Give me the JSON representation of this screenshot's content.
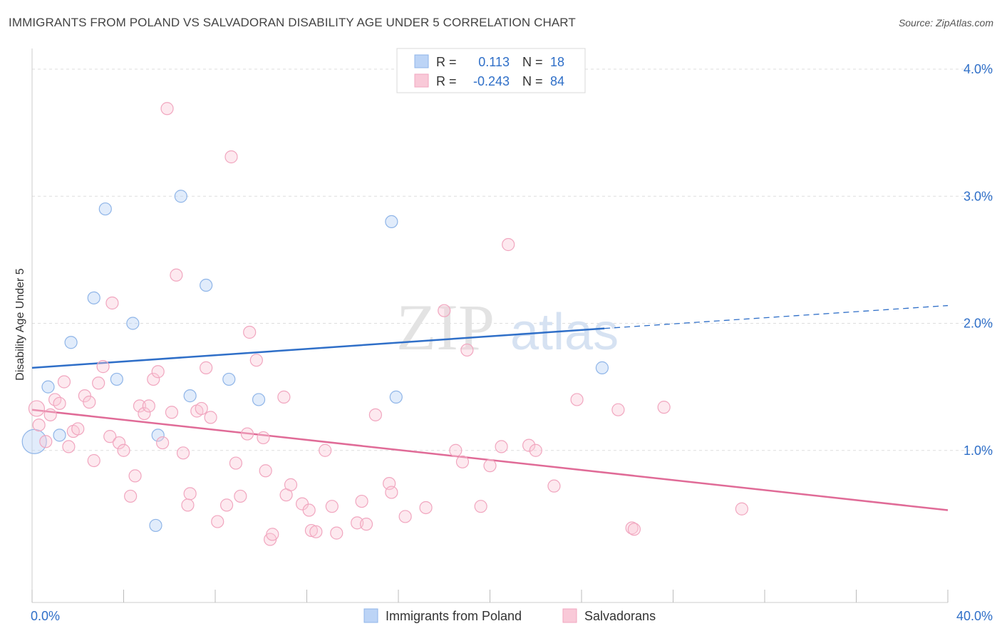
{
  "title": "IMMIGRANTS FROM POLAND VS SALVADORAN DISABILITY AGE UNDER 5 CORRELATION CHART",
  "source": "Source: ZipAtlas.com",
  "watermark": {
    "zip": "ZIP",
    "atlas": "atlas"
  },
  "legend_stats": [
    {
      "r_label": "R =",
      "r_value": "0.113",
      "n_label": "N =",
      "n_value": "18",
      "color": "#8fb5e8",
      "fill": "#bcd4f6"
    },
    {
      "r_label": "R =",
      "r_value": "-0.243",
      "n_label": "N =",
      "n_value": "84",
      "color": "#f1a6bf",
      "fill": "#f9c9d8"
    }
  ],
  "colors": {
    "blue_line": "#2f6fc8",
    "pink_line": "#e06b97",
    "blue_text": "#2f6fc8",
    "grid": "#dddddd"
  },
  "chart_data": {
    "type": "scatter",
    "xlabel": "",
    "ylabel": "Disability Age Under 5",
    "xlim": [
      0,
      40
    ],
    "ylim": [
      0,
      4.0
    ],
    "x_tick_labels": [
      "0.0%",
      "40.0%"
    ],
    "y_ticks": [
      1.0,
      2.0,
      3.0,
      4.0
    ],
    "y_tick_labels": [
      "1.0%",
      "2.0%",
      "3.0%",
      "4.0%"
    ],
    "grid": true,
    "legend_position": "bottom",
    "series": [
      {
        "name": "Immigrants from Poland",
        "color": "#8fb5e8",
        "points": [
          [
            0.1,
            1.07
          ],
          [
            0.7,
            1.5
          ],
          [
            1.2,
            1.12
          ],
          [
            1.7,
            1.85
          ],
          [
            2.7,
            2.2
          ],
          [
            3.2,
            2.9
          ],
          [
            3.7,
            1.56
          ],
          [
            4.4,
            2.0
          ],
          [
            5.5,
            1.12
          ],
          [
            5.4,
            0.41
          ],
          [
            6.5,
            3.0
          ],
          [
            6.9,
            1.43
          ],
          [
            7.6,
            2.3
          ],
          [
            8.6,
            1.56
          ],
          [
            9.9,
            1.4
          ],
          [
            15.7,
            2.8
          ],
          [
            15.9,
            1.42
          ],
          [
            24.9,
            1.65
          ]
        ],
        "trend": {
          "x": [
            0,
            25
          ],
          "y": [
            1.65,
            1.96
          ],
          "dashed_extension": {
            "x": [
              25,
              40
            ],
            "y": [
              1.96,
              2.14
            ]
          }
        }
      },
      {
        "name": "Salvadorans",
        "color": "#f1a6bf",
        "points": [
          [
            0.2,
            1.33
          ],
          [
            0.3,
            1.2
          ],
          [
            0.6,
            1.07
          ],
          [
            0.8,
            1.28
          ],
          [
            1.0,
            1.4
          ],
          [
            1.2,
            1.37
          ],
          [
            1.4,
            1.54
          ],
          [
            1.6,
            1.03
          ],
          [
            1.8,
            1.15
          ],
          [
            2.0,
            1.17
          ],
          [
            2.3,
            1.43
          ],
          [
            2.5,
            1.38
          ],
          [
            2.7,
            0.92
          ],
          [
            2.9,
            1.53
          ],
          [
            3.1,
            1.66
          ],
          [
            3.4,
            1.11
          ],
          [
            3.5,
            2.16
          ],
          [
            3.8,
            1.06
          ],
          [
            4.0,
            1.0
          ],
          [
            4.3,
            0.64
          ],
          [
            4.5,
            0.8
          ],
          [
            4.7,
            1.35
          ],
          [
            4.9,
            1.29
          ],
          [
            5.1,
            1.35
          ],
          [
            5.3,
            1.56
          ],
          [
            5.5,
            1.62
          ],
          [
            5.7,
            1.06
          ],
          [
            5.9,
            3.69
          ],
          [
            6.1,
            1.3
          ],
          [
            6.3,
            2.38
          ],
          [
            6.6,
            0.98
          ],
          [
            6.8,
            0.57
          ],
          [
            6.9,
            0.66
          ],
          [
            7.2,
            1.31
          ],
          [
            7.4,
            1.33
          ],
          [
            7.6,
            1.65
          ],
          [
            7.8,
            1.26
          ],
          [
            8.1,
            0.44
          ],
          [
            8.5,
            0.57
          ],
          [
            8.7,
            3.31
          ],
          [
            8.9,
            0.9
          ],
          [
            9.1,
            0.64
          ],
          [
            9.4,
            1.13
          ],
          [
            9.5,
            1.93
          ],
          [
            9.8,
            1.71
          ],
          [
            10.1,
            1.1
          ],
          [
            10.2,
            0.84
          ],
          [
            10.4,
            0.3
          ],
          [
            10.5,
            0.34
          ],
          [
            11.0,
            1.42
          ],
          [
            11.1,
            0.65
          ],
          [
            11.3,
            0.73
          ],
          [
            11.8,
            0.58
          ],
          [
            12.1,
            0.53
          ],
          [
            12.2,
            0.37
          ],
          [
            12.4,
            0.36
          ],
          [
            12.8,
            1.0
          ],
          [
            13.1,
            0.56
          ],
          [
            13.3,
            0.35
          ],
          [
            14.2,
            0.43
          ],
          [
            14.4,
            0.6
          ],
          [
            14.6,
            0.42
          ],
          [
            15.0,
            1.28
          ],
          [
            15.6,
            0.74
          ],
          [
            15.7,
            0.67
          ],
          [
            16.3,
            0.48
          ],
          [
            17.2,
            0.55
          ],
          [
            18.0,
            2.1
          ],
          [
            18.5,
            1.0
          ],
          [
            18.8,
            0.91
          ],
          [
            19.0,
            1.79
          ],
          [
            19.6,
            0.56
          ],
          [
            20.0,
            0.88
          ],
          [
            20.5,
            1.03
          ],
          [
            20.8,
            2.62
          ],
          [
            21.7,
            1.04
          ],
          [
            22.0,
            1.0
          ],
          [
            22.8,
            0.72
          ],
          [
            23.8,
            1.4
          ],
          [
            25.6,
            1.32
          ],
          [
            26.2,
            0.39
          ],
          [
            26.3,
            0.38
          ],
          [
            27.6,
            1.34
          ],
          [
            31.0,
            0.54
          ]
        ],
        "trend": {
          "x": [
            0,
            40
          ],
          "y": [
            1.32,
            0.53
          ]
        }
      }
    ]
  }
}
